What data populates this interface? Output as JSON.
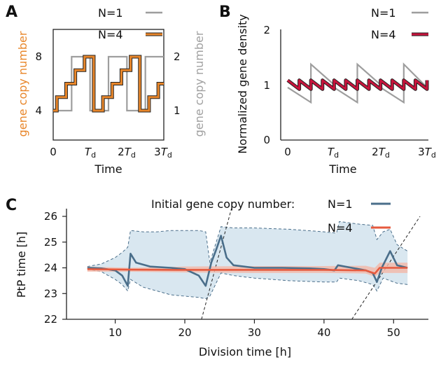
{
  "chart_data": [
    {
      "panel": "A",
      "type": "line",
      "xlabel": "Time",
      "ylabel_left": "gene copy number",
      "ylabel_right": "gene copy number",
      "x_ticks": [
        "0",
        "T_d",
        "2T_d",
        "3T_d"
      ],
      "xlim": [
        0,
        3
      ],
      "ylim_left": [
        4,
        8
      ],
      "yticks_left": [
        "4",
        "8"
      ],
      "ylim_right": [
        1,
        2
      ],
      "yticks_right": [
        "1",
        "2"
      ],
      "colors": {
        "N1": "#9e9e9e",
        "N4": "#e8862a"
      },
      "series": [
        {
          "name": "N=1",
          "axis": "right",
          "x": [
            0,
            0.5,
            0.5,
            1,
            1,
            1.5,
            1.5,
            2,
            2,
            2.5,
            2.5,
            3
          ],
          "y": [
            1,
            1,
            2,
            2,
            1,
            1,
            2,
            2,
            1,
            1,
            2,
            2
          ]
        },
        {
          "name": "N=4",
          "axis": "left",
          "x": [
            0,
            0.1,
            0.1,
            0.35,
            0.35,
            0.6,
            0.6,
            0.85,
            0.85,
            1.1,
            1.1,
            1.35,
            1.35,
            1.6,
            1.6,
            1.85,
            1.85,
            2.1,
            2.1,
            2.35,
            2.35,
            2.6,
            2.6,
            2.85,
            2.85,
            3
          ],
          "y": [
            4,
            4,
            5,
            5,
            6,
            6,
            7,
            7,
            8,
            8,
            4,
            4,
            5,
            5,
            6,
            6,
            7,
            7,
            8,
            8,
            4,
            4,
            5,
            5,
            6,
            6
          ]
        }
      ],
      "legend": [
        "N=1",
        "N=4"
      ]
    },
    {
      "panel": "B",
      "type": "line",
      "xlabel": "Time",
      "ylabel": "Normalized gene density",
      "x_ticks": [
        "0",
        "T_d",
        "2T_d",
        "3T_d"
      ],
      "xlim": [
        0,
        3
      ],
      "ylim": [
        0,
        2
      ],
      "yticks": [
        "0",
        "1",
        "2"
      ],
      "colors": {
        "N1": "#9e9e9e",
        "N4": "#c8143c"
      },
      "series": [
        {
          "name": "N=1",
          "points": [
            [
              0,
              0.95
            ],
            [
              0.5,
              0.68
            ],
            [
              0.5,
              1.37
            ],
            [
              1,
              1.0
            ],
            [
              1,
              0.95
            ],
            [
              1.5,
              0.68
            ],
            [
              1.5,
              1.37
            ],
            [
              2,
              1.0
            ],
            [
              2,
              0.95
            ],
            [
              2.5,
              0.68
            ],
            [
              2.5,
              1.37
            ],
            [
              3,
              0.95
            ]
          ]
        },
        {
          "name": "N=4",
          "period": 0.25,
          "low": 0.92,
          "high": 1.08
        }
      ],
      "legend": [
        "N=1",
        "N=4"
      ]
    },
    {
      "panel": "C",
      "type": "line",
      "xlabel": "Division time [h]",
      "ylabel": "PtP time [h]",
      "xlim": [
        3,
        55
      ],
      "xticks": [
        10,
        20,
        30,
        40,
        50
      ],
      "ylim": [
        22,
        26.3
      ],
      "yticks": [
        22,
        23,
        24,
        25,
        26
      ],
      "legend_title": "Initial gene copy number:",
      "legend": [
        "N=1",
        "N=4"
      ],
      "colors": {
        "N1": "#4a6e8a",
        "N1_band": "#b9d3e3",
        "N4": "#e65a3e",
        "N4_band": "#f2b8a8"
      },
      "series": [
        {
          "name": "N=1",
          "x": [
            6,
            8,
            10,
            11,
            11.8,
            12.2,
            13,
            15,
            18,
            20,
            22,
            23.0,
            23.8,
            24.5,
            25.2,
            26,
            27,
            30,
            34,
            38,
            40,
            41.5,
            42,
            44,
            46,
            47,
            47.6,
            48.3,
            49.5,
            50.5,
            52
          ],
          "y": [
            24.0,
            23.98,
            23.9,
            23.7,
            23.3,
            24.55,
            24.2,
            24.05,
            24.0,
            23.95,
            23.7,
            23.3,
            24.2,
            24.7,
            25.25,
            24.4,
            24.1,
            24.0,
            24.0,
            23.98,
            23.95,
            23.9,
            24.1,
            24.0,
            23.9,
            23.8,
            23.45,
            24.0,
            24.65,
            24.1,
            24.0
          ],
          "band_x": [
            6,
            8,
            10,
            11,
            11.8,
            12.2,
            14,
            16,
            18,
            20,
            22,
            23.0,
            23.6,
            25.2,
            27,
            30,
            35,
            40,
            41.8,
            42.2,
            45,
            47,
            47.6,
            48.5,
            49.5,
            50.5,
            52
          ],
          "band_upper": [
            24.05,
            24.15,
            24.4,
            24.6,
            24.8,
            25.45,
            25.4,
            25.4,
            25.45,
            25.45,
            25.45,
            25.4,
            24.2,
            25.6,
            25.55,
            25.55,
            25.5,
            25.4,
            25.35,
            25.8,
            25.7,
            25.65,
            25.1,
            25.4,
            25.5,
            24.9,
            24.65
          ],
          "band_lower": [
            23.95,
            23.85,
            23.55,
            23.35,
            23.1,
            23.55,
            23.25,
            23.1,
            22.95,
            22.9,
            22.85,
            22.8,
            22.9,
            23.8,
            23.7,
            23.6,
            23.5,
            23.45,
            23.45,
            23.6,
            23.5,
            23.35,
            23.1,
            23.6,
            23.5,
            23.4,
            23.35
          ]
        },
        {
          "name": "N=4",
          "x": [
            6,
            12,
            20,
            30,
            40,
            46,
            47.3,
            48,
            52
          ],
          "y": [
            23.95,
            23.93,
            23.92,
            23.92,
            23.92,
            23.9,
            23.78,
            24.0,
            24.0
          ],
          "band_upper": [
            24.05,
            24.0,
            24.05,
            24.07,
            24.07,
            24.08,
            24.0,
            24.2,
            24.2
          ],
          "band_lower": [
            23.85,
            23.85,
            23.82,
            23.8,
            23.8,
            23.78,
            23.65,
            23.8,
            23.8
          ]
        }
      ],
      "guide_lines": [
        {
          "x1": 22.4,
          "y1": 22.0,
          "x2": 26.7,
          "y2": 26.3
        },
        {
          "x1": 44.0,
          "y1": 22.0,
          "x2": 53.8,
          "y2": 26.0
        }
      ]
    }
  ]
}
